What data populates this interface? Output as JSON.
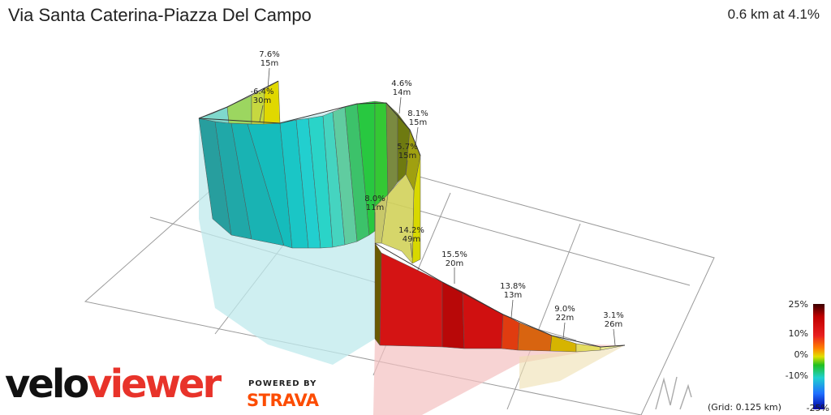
{
  "header": {
    "title": "Via Santa Caterina-Piazza Del Campo",
    "summary": "0.6 km at 4.1%"
  },
  "segment_labels": [
    {
      "grade": "7.6%",
      "dist": "15m"
    },
    {
      "grade": "-6.4%",
      "dist": "30m"
    },
    {
      "grade": "4.6%",
      "dist": "14m"
    },
    {
      "grade": "8.1%",
      "dist": "15m"
    },
    {
      "grade": "5.7%",
      "dist": "15m"
    },
    {
      "grade": "8.0%",
      "dist": "11m"
    },
    {
      "grade": "14.2%",
      "dist": "49m"
    },
    {
      "grade": "15.5%",
      "dist": "20m"
    },
    {
      "grade": "13.8%",
      "dist": "13m"
    },
    {
      "grade": "9.0%",
      "dist": "22m"
    },
    {
      "grade": "3.1%",
      "dist": "26m"
    }
  ],
  "legend": {
    "ticks": [
      "25%",
      "10%",
      "0%",
      "-10%",
      "-25%"
    ],
    "grid_note": "(Grid: 0.125 km)",
    "colors": [
      "#3a0000",
      "#c00000",
      "#e82020",
      "#ff8000",
      "#e0e000",
      "#20c020",
      "#20d0d0",
      "#2070ff",
      "#0000a0"
    ]
  },
  "branding": {
    "logo_part1": "velo",
    "logo_part2": "viewer",
    "powered_by": "POWERED BY",
    "strava": "STRAVA"
  },
  "compass": {
    "letter": "N",
    "icon": "north-arrow-icon"
  }
}
